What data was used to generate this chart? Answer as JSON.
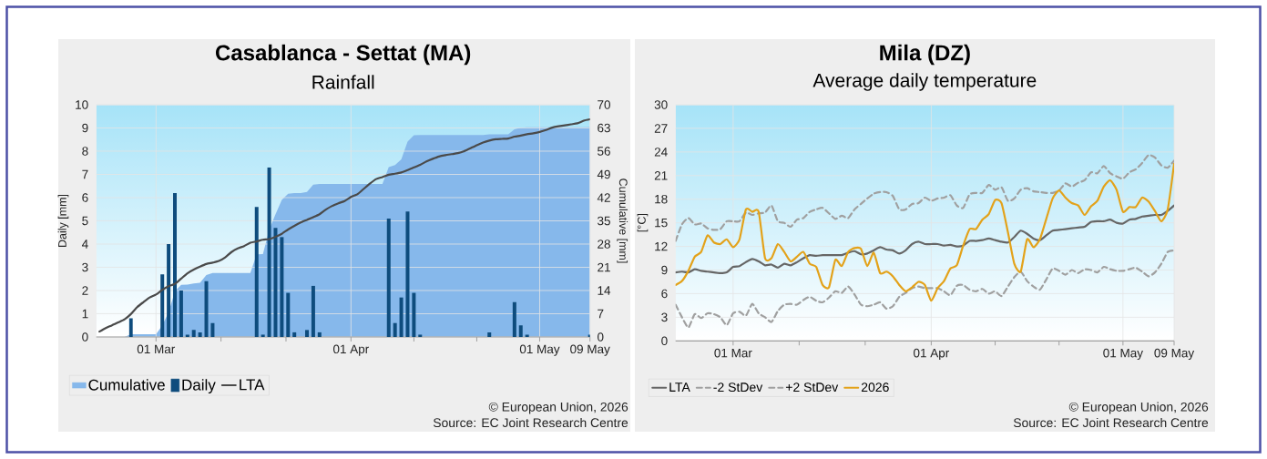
{
  "chart_data": [
    {
      "type": "bar",
      "title": "Casablanca - Settat (MA)",
      "subtitle": "Rainfall",
      "ylabel": "Daily [mm]",
      "y2label": "Cumulative [mm]",
      "xlim": [
        "2026-02-19T12:00",
        "2026-05-09"
      ],
      "xticks": [
        {
          "value": "2026-03-01",
          "label": "01 Mar"
        },
        {
          "value": "2026-03-11T08:00",
          "label": null
        },
        {
          "value": "2026-03-21T16:00",
          "label": null
        },
        {
          "value": "2026-04-01",
          "label": "01 Apr"
        },
        {
          "value": "2026-04-11",
          "label": null
        },
        {
          "value": "2026-04-21",
          "label": null
        },
        {
          "value": "2026-05-01",
          "label": "01 May"
        },
        {
          "value": "2026-05-09",
          "label": "09 May"
        }
      ],
      "ylim": [
        0,
        10
      ],
      "yticks": [
        0,
        1,
        2,
        3,
        4,
        5,
        6,
        7,
        8,
        9,
        10
      ],
      "y2lim": [
        0,
        70
      ],
      "y2ticks": [
        0,
        7,
        14,
        21,
        28,
        35,
        42,
        49,
        56,
        63,
        70
      ],
      "grid": true,
      "legend": "bottom left",
      "x": [
        "2026-02-20",
        "2026-02-21",
        "2026-02-22",
        "2026-02-23",
        "2026-02-24",
        "2026-02-25",
        "2026-02-26",
        "2026-02-27",
        "2026-02-28",
        "2026-03-01",
        "2026-03-02",
        "2026-03-03",
        "2026-03-04",
        "2026-03-05",
        "2026-03-06",
        "2026-03-07",
        "2026-03-08",
        "2026-03-09",
        "2026-03-10",
        "2026-03-11",
        "2026-03-12",
        "2026-03-13",
        "2026-03-14",
        "2026-03-15",
        "2026-03-16",
        "2026-03-17",
        "2026-03-18",
        "2026-03-19",
        "2026-03-20",
        "2026-03-21",
        "2026-03-22",
        "2026-03-23",
        "2026-03-24",
        "2026-03-25",
        "2026-03-26",
        "2026-03-27",
        "2026-03-28",
        "2026-03-29",
        "2026-03-30",
        "2026-03-31",
        "2026-04-01",
        "2026-04-02",
        "2026-04-03",
        "2026-04-04",
        "2026-04-05",
        "2026-04-06",
        "2026-04-07",
        "2026-04-08",
        "2026-04-09",
        "2026-04-10",
        "2026-04-11",
        "2026-04-12",
        "2026-04-13",
        "2026-04-14",
        "2026-04-15",
        "2026-04-16",
        "2026-04-17",
        "2026-04-18",
        "2026-04-19",
        "2026-04-20",
        "2026-04-21",
        "2026-04-22",
        "2026-04-23",
        "2026-04-24",
        "2026-04-25",
        "2026-04-26",
        "2026-04-27",
        "2026-04-28",
        "2026-04-29",
        "2026-04-30",
        "2026-05-01",
        "2026-05-02",
        "2026-05-03",
        "2026-05-04",
        "2026-05-05",
        "2026-05-06",
        "2026-05-07",
        "2026-05-08",
        "2026-05-09"
      ],
      "series": [
        {
          "name": "Cumulative",
          "type": "area",
          "axis": "y2",
          "color": "#86b8eb",
          "x": [
            "2026-02-20",
            "2026-02-24",
            "2026-02-25",
            "2026-03-01",
            "2026-03-02",
            "2026-03-03",
            "2026-03-04",
            "2026-03-05",
            "2026-03-06",
            "2026-03-07",
            "2026-03-08",
            "2026-03-09",
            "2026-03-10",
            "2026-03-16",
            "2026-03-17",
            "2026-03-18",
            "2026-03-19",
            "2026-03-20",
            "2026-03-21",
            "2026-03-22",
            "2026-03-23",
            "2026-03-24",
            "2026-03-25",
            "2026-03-26",
            "2026-03-27",
            "2026-04-06",
            "2026-04-07",
            "2026-04-08",
            "2026-04-09",
            "2026-04-10",
            "2026-04-11",
            "2026-04-12",
            "2026-04-22",
            "2026-04-23",
            "2026-04-26",
            "2026-04-27",
            "2026-04-28",
            "2026-04-29",
            "2026-05-08",
            "2026-05-09"
          ],
          "values": [
            0,
            0,
            0.8,
            0.8,
            3.5,
            7.5,
            13.7,
            15.7,
            15.8,
            16.1,
            16.3,
            18.7,
            19.3,
            19.3,
            24.9,
            25.0,
            32.3,
            37.0,
            41.3,
            43.2,
            43.4,
            43.4,
            43.7,
            45.9,
            46.1,
            46.1,
            51.2,
            51.8,
            53.5,
            58.9,
            60.8,
            60.9,
            60.9,
            61.1,
            61.1,
            62.6,
            63.1,
            63.2,
            63.2,
            63.3
          ]
        },
        {
          "name": "Daily",
          "type": "bar",
          "color": "#0e4c7d",
          "x": [
            "2026-02-25",
            "2026-03-02",
            "2026-03-03",
            "2026-03-04",
            "2026-03-05",
            "2026-03-06",
            "2026-03-07",
            "2026-03-08",
            "2026-03-09",
            "2026-03-10",
            "2026-03-17",
            "2026-03-18",
            "2026-03-19",
            "2026-03-20",
            "2026-03-21",
            "2026-03-22",
            "2026-03-23",
            "2026-03-25",
            "2026-03-26",
            "2026-03-27",
            "2026-04-07",
            "2026-04-08",
            "2026-04-09",
            "2026-04-10",
            "2026-04-11",
            "2026-04-12",
            "2026-04-23",
            "2026-04-27",
            "2026-04-28",
            "2026-04-29",
            "2026-05-09"
          ],
          "values": [
            0.8,
            2.7,
            4.0,
            6.2,
            2.0,
            0.1,
            0.3,
            0.2,
            2.4,
            0.6,
            5.6,
            0.1,
            7.3,
            4.7,
            4.3,
            1.9,
            0.2,
            0.3,
            2.2,
            0.2,
            5.1,
            0.6,
            1.7,
            5.4,
            1.9,
            0.1,
            0.2,
            1.5,
            0.5,
            0.1,
            0.1
          ]
        },
        {
          "name": "LTA",
          "type": "line",
          "axis": "y2",
          "color": "#4a4a4a",
          "values": [
            1.6,
            2.7,
            3.5,
            4.4,
            5.3,
            6.9,
            9.0,
            10.5,
            11.9,
            12.8,
            14.2,
            15.3,
            16.0,
            17.6,
            19.2,
            20.3,
            21.2,
            22.0,
            22.4,
            22.9,
            24.0,
            25.6,
            26.7,
            27.4,
            28.4,
            28.8,
            29.3,
            29.5,
            30.2,
            31.1,
            32.4,
            33.5,
            34.5,
            35.3,
            36.1,
            37.0,
            38.4,
            39.5,
            40.3,
            41.0,
            42.2,
            43.0,
            44.6,
            46.2,
            47.6,
            48.2,
            48.9,
            49.2,
            49.6,
            50.3,
            51.1,
            51.9,
            52.9,
            53.7,
            54.4,
            54.8,
            55.1,
            55.4,
            56.0,
            56.9,
            57.8,
            58.6,
            59.2,
            59.6,
            59.7,
            59.8,
            60.4,
            60.7,
            61.1,
            61.4,
            61.8,
            62.4,
            63.1,
            63.5,
            63.8,
            64.1,
            64.4,
            65.2,
            65.6
          ]
        }
      ],
      "annotations": [
        "© European Union, 2026",
        "Source: EC Joint Research Centre"
      ]
    },
    {
      "type": "line",
      "title": "Mila (DZ)",
      "subtitle": "Average daily temperature",
      "ylabel": "[°C]",
      "xlim": [
        "2026-02-20",
        "2026-05-09"
      ],
      "xticks": [
        {
          "value": "2026-03-01",
          "label": "01 Mar"
        },
        {
          "value": "2026-03-11T08:00",
          "label": null
        },
        {
          "value": "2026-03-21T16:00",
          "label": null
        },
        {
          "value": "2026-04-01",
          "label": "01 Apr"
        },
        {
          "value": "2026-04-11",
          "label": null
        },
        {
          "value": "2026-04-21",
          "label": null
        },
        {
          "value": "2026-05-01",
          "label": "01 May"
        },
        {
          "value": "2026-05-09",
          "label": "09 May"
        }
      ],
      "ylim": [
        0,
        30
      ],
      "yticks": [
        0,
        3,
        6,
        9,
        12,
        15,
        18,
        21,
        24,
        27,
        30
      ],
      "grid": true,
      "legend": "bottom left",
      "x": [
        "2026-02-20",
        "2026-02-21",
        "2026-02-22",
        "2026-02-23",
        "2026-02-24",
        "2026-02-25",
        "2026-02-26",
        "2026-02-27",
        "2026-02-28",
        "2026-03-01",
        "2026-03-02",
        "2026-03-03",
        "2026-03-04",
        "2026-03-05",
        "2026-03-06",
        "2026-03-07",
        "2026-03-08",
        "2026-03-09",
        "2026-03-10",
        "2026-03-11",
        "2026-03-12",
        "2026-03-13",
        "2026-03-14",
        "2026-03-15",
        "2026-03-16",
        "2026-03-17",
        "2026-03-18",
        "2026-03-19",
        "2026-03-20",
        "2026-03-21",
        "2026-03-22",
        "2026-03-23",
        "2026-03-24",
        "2026-03-25",
        "2026-03-26",
        "2026-03-27",
        "2026-03-28",
        "2026-03-29",
        "2026-03-30",
        "2026-03-31",
        "2026-04-01",
        "2026-04-02",
        "2026-04-03",
        "2026-04-04",
        "2026-04-05",
        "2026-04-06",
        "2026-04-07",
        "2026-04-08",
        "2026-04-09",
        "2026-04-10",
        "2026-04-11",
        "2026-04-12",
        "2026-04-13",
        "2026-04-14",
        "2026-04-15",
        "2026-04-16",
        "2026-04-17",
        "2026-04-18",
        "2026-04-19",
        "2026-04-20",
        "2026-04-21",
        "2026-04-22",
        "2026-04-23",
        "2026-04-24",
        "2026-04-25",
        "2026-04-26",
        "2026-04-27",
        "2026-04-28",
        "2026-04-29",
        "2026-04-30",
        "2026-05-01",
        "2026-05-02",
        "2026-05-03",
        "2026-05-04",
        "2026-05-05",
        "2026-05-06",
        "2026-05-07",
        "2026-05-08",
        "2026-05-09"
      ],
      "series": [
        {
          "name": "LTA",
          "color": "#666666",
          "values": [
            8.7,
            8.8,
            8.7,
            9.1,
            8.9,
            8.8,
            8.7,
            8.6,
            8.7,
            9.4,
            9.5,
            10.0,
            10.4,
            10.1,
            9.6,
            9.7,
            9.3,
            9.8,
            9.6,
            10.0,
            10.5,
            10.9,
            10.8,
            10.9,
            10.9,
            10.9,
            10.9,
            11.2,
            11.4,
            11.0,
            11.1,
            11.5,
            11.9,
            11.6,
            11.5,
            11.1,
            11.5,
            12.3,
            12.6,
            12.3,
            12.3,
            12.3,
            12.1,
            12.2,
            12.0,
            12.1,
            12.7,
            12.7,
            12.8,
            13.0,
            12.8,
            12.6,
            12.5,
            13.2,
            14.0,
            13.6,
            13.0,
            12.8,
            13.4,
            14.0,
            14.1,
            14.2,
            14.3,
            14.4,
            14.5,
            15.1,
            15.2,
            15.2,
            15.4,
            15.0,
            14.9,
            15.4,
            15.5,
            15.8,
            15.9,
            16.0,
            16.0,
            16.5,
            17.2
          ]
        },
        {
          "name": "-2 StDev",
          "color": "#a0a0a0",
          "line_style": "dashed",
          "values": [
            4.6,
            3.0,
            1.7,
            3.4,
            2.9,
            3.5,
            3.4,
            3.0,
            2.0,
            3.5,
            3.7,
            3.2,
            4.7,
            3.5,
            3.0,
            2.4,
            3.8,
            4.6,
            4.7,
            4.6,
            5.2,
            5.6,
            5.1,
            4.9,
            5.5,
            6.3,
            6.1,
            6.9,
            5.9,
            4.6,
            4.4,
            4.6,
            4.9,
            4.1,
            4.4,
            5.6,
            6.1,
            6.7,
            6.9,
            6.7,
            6.7,
            6.7,
            6.3,
            5.8,
            7.0,
            7.1,
            6.5,
            6.3,
            6.6,
            6.0,
            6.3,
            5.7,
            6.9,
            8.1,
            8.8,
            7.6,
            6.9,
            6.5,
            7.8,
            9.2,
            8.9,
            8.4,
            9.0,
            8.6,
            9.1,
            9.0,
            8.7,
            9.4,
            9.1,
            8.9,
            8.9,
            9.1,
            9.3,
            8.8,
            8.2,
            8.7,
            9.8,
            11.3,
            11.5
          ]
        },
        {
          "name": "+2 StDev",
          "color": "#a0a0a0",
          "line_style": "dashed",
          "values": [
            12.7,
            14.8,
            15.6,
            14.8,
            14.9,
            14.3,
            14.1,
            14.2,
            15.2,
            15.2,
            15.2,
            16.3,
            16.0,
            16.2,
            16.3,
            17.2,
            15.2,
            15.0,
            14.5,
            15.4,
            15.6,
            16.4,
            16.7,
            16.9,
            16.2,
            15.5,
            15.9,
            15.6,
            16.7,
            17.4,
            18.1,
            18.7,
            18.9,
            18.9,
            18.4,
            16.7,
            16.7,
            17.4,
            17.5,
            18.2,
            17.8,
            18.1,
            18.2,
            18.5,
            17.2,
            16.9,
            18.6,
            18.8,
            18.8,
            19.8,
            19.2,
            19.5,
            17.8,
            18.1,
            19.2,
            19.4,
            19.0,
            18.9,
            18.8,
            18.8,
            19.1,
            20.0,
            19.6,
            20.1,
            20.4,
            21.4,
            21.3,
            22.2,
            21.3,
            20.9,
            20.6,
            21.4,
            21.8,
            22.6,
            23.6,
            23.3,
            22.3,
            22.0,
            22.9
          ]
        },
        {
          "name": "2026",
          "color": "#e3a21a",
          "values": [
            7.1,
            7.6,
            8.9,
            10.7,
            11.3,
            13.4,
            12.5,
            12.3,
            12.9,
            11.9,
            12.9,
            16.7,
            16.4,
            16.4,
            10.5,
            10.5,
            12.3,
            11.3,
            10.1,
            10.7,
            11.3,
            9.8,
            9.4,
            7.1,
            6.8,
            10.3,
            9.5,
            11.3,
            11.8,
            11.7,
            9.5,
            11.2,
            8.6,
            8.8,
            8.2,
            7.1,
            6.3,
            6.8,
            7.5,
            7.1,
            5.1,
            6.7,
            7.6,
            9.2,
            9.6,
            12.1,
            14.2,
            14.2,
            15.4,
            16.1,
            17.9,
            17.5,
            13.8,
            9.8,
            8.8,
            12.9,
            11.9,
            12.9,
            15.5,
            18.1,
            19.1,
            18.2,
            17.5,
            17.2,
            16.0,
            17.1,
            17.8,
            19.6,
            20.4,
            19.2,
            16.4,
            17.0,
            17.0,
            18.2,
            17.7,
            16.5,
            15.2,
            16.7,
            22.5
          ]
        }
      ],
      "annotations": [
        "© European Union, 2026",
        "Source: EC Joint Research Centre"
      ]
    }
  ]
}
